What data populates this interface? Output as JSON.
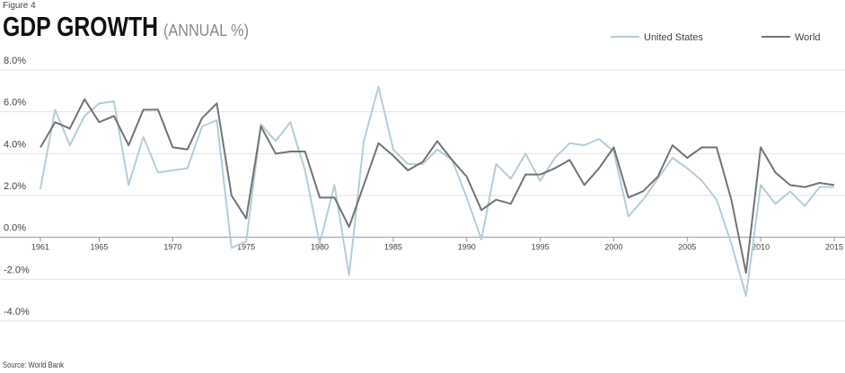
{
  "chart_data": {
    "type": "line",
    "figure_label": "Figure 4",
    "title": "GDP GROWTH",
    "subtitle": "(ANNUAL %)",
    "source": "Source: World Bank",
    "x": [
      1961,
      1962,
      1963,
      1964,
      1965,
      1966,
      1967,
      1968,
      1969,
      1970,
      1971,
      1972,
      1973,
      1974,
      1975,
      1976,
      1977,
      1978,
      1979,
      1980,
      1981,
      1982,
      1983,
      1984,
      1985,
      1986,
      1987,
      1988,
      1989,
      1990,
      1991,
      1992,
      1993,
      1994,
      1995,
      1996,
      1997,
      1998,
      1999,
      2000,
      2001,
      2002,
      2003,
      2004,
      2005,
      2006,
      2007,
      2008,
      2009,
      2010,
      2011,
      2012,
      2013,
      2014,
      2015
    ],
    "series": [
      {
        "name": "United States",
        "color": "#b5cdd8",
        "values": [
          2.3,
          6.1,
          4.4,
          5.8,
          6.4,
          6.5,
          2.5,
          4.8,
          3.1,
          3.2,
          3.3,
          5.3,
          5.6,
          -0.5,
          -0.2,
          5.4,
          4.6,
          5.5,
          3.2,
          -0.3,
          2.5,
          -1.8,
          4.6,
          7.2,
          4.2,
          3.5,
          3.5,
          4.2,
          3.7,
          1.9,
          -0.1,
          3.5,
          2.8,
          4.0,
          2.7,
          3.8,
          4.5,
          4.4,
          4.7,
          4.1,
          1.0,
          1.8,
          2.8,
          3.8,
          3.3,
          2.7,
          1.8,
          -0.3,
          -2.8,
          2.5,
          1.6,
          2.2,
          1.5,
          2.4,
          2.4
        ]
      },
      {
        "name": "World",
        "color": "#737373",
        "values": [
          4.3,
          5.5,
          5.2,
          6.6,
          5.5,
          5.8,
          4.4,
          6.1,
          6.1,
          4.3,
          4.2,
          5.7,
          6.4,
          2.0,
          0.9,
          5.3,
          4.0,
          4.1,
          4.1,
          1.9,
          1.9,
          0.5,
          2.5,
          4.5,
          3.9,
          3.2,
          3.6,
          4.6,
          3.7,
          2.9,
          1.3,
          1.8,
          1.6,
          3.0,
          3.0,
          3.3,
          3.7,
          2.5,
          3.3,
          4.3,
          1.9,
          2.2,
          2.9,
          4.4,
          3.8,
          4.3,
          4.3,
          1.8,
          -1.7,
          4.3,
          3.1,
          2.5,
          2.4,
          2.6,
          2.5
        ]
      }
    ],
    "xlim": [
      1961,
      2015
    ],
    "xticks": [
      1961,
      1965,
      1970,
      1975,
      1980,
      1985,
      1990,
      1995,
      2000,
      2005,
      2010,
      2015
    ],
    "ylim": [
      -4,
      8
    ],
    "yticks": [
      {
        "value": -4,
        "label": "-4.0%"
      },
      {
        "value": -2,
        "label": "-2.0%"
      },
      {
        "value": 0,
        "label": "0.0%"
      },
      {
        "value": 2,
        "label": "2.0%"
      },
      {
        "value": 4,
        "label": "4.0%"
      },
      {
        "value": 6,
        "label": "6.0%"
      },
      {
        "value": 8,
        "label": "8.0%"
      }
    ],
    "grid": true,
    "legend": "top-right"
  }
}
